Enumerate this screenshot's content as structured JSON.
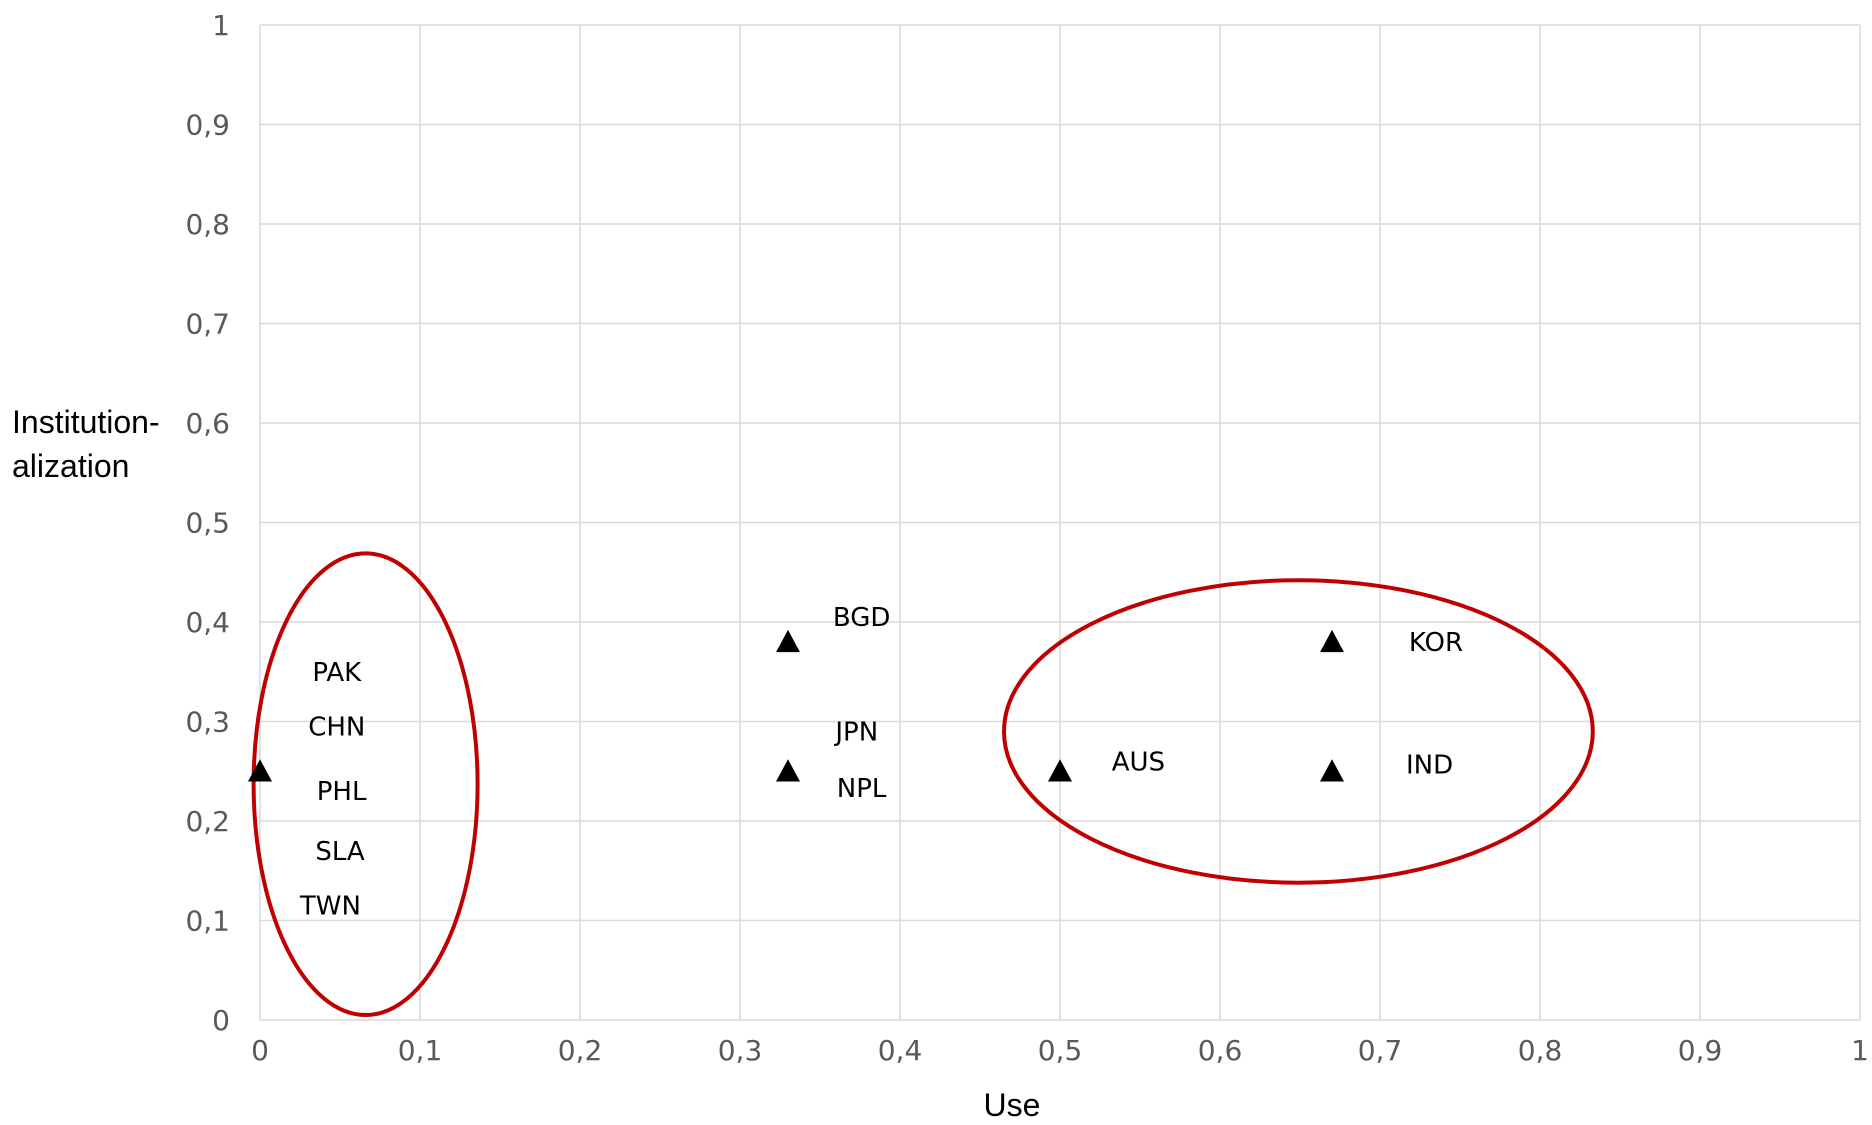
{
  "chart_data": {
    "type": "scatter",
    "xlabel": "Use",
    "ylabel_lines": [
      "Institution-",
      "alization"
    ],
    "xlim": [
      0,
      1
    ],
    "ylim": [
      0,
      1
    ],
    "x_ticks": [
      0,
      0.1,
      0.2,
      0.3,
      0.4,
      0.5,
      0.6,
      0.7,
      0.8,
      0.9,
      1
    ],
    "y_ticks": [
      0,
      0.1,
      0.2,
      0.3,
      0.4,
      0.5,
      0.6,
      0.7,
      0.8,
      0.9,
      1
    ],
    "x_tick_labels": [
      "0",
      "0,1",
      "0,2",
      "0,3",
      "0,4",
      "0,5",
      "0,6",
      "0,7",
      "0,8",
      "0,9",
      "1"
    ],
    "y_tick_labels": [
      "0",
      "0,1",
      "0,2",
      "0,3",
      "0,4",
      "0,5",
      "0,6",
      "0,7",
      "0,8",
      "0,9",
      "1"
    ],
    "grid": true,
    "marker": "triangle",
    "marker_color": "#000000",
    "grid_color": "#d9d9d9",
    "points": [
      {
        "x": 0,
        "y": 0.25
      },
      {
        "x": 0.33,
        "y": 0.38
      },
      {
        "x": 0.33,
        "y": 0.25
      },
      {
        "x": 0.5,
        "y": 0.25
      },
      {
        "x": 0.67,
        "y": 0.38
      },
      {
        "x": 0.67,
        "y": 0.25
      }
    ],
    "labels": [
      {
        "text": "PAK",
        "x": 0.048,
        "y": 0.35
      },
      {
        "text": "CHN",
        "x": 0.048,
        "y": 0.295
      },
      {
        "text": "PHL",
        "x": 0.051,
        "y": 0.23
      },
      {
        "text": "SLA",
        "x": 0.05,
        "y": 0.17
      },
      {
        "text": "TWN",
        "x": 0.044,
        "y": 0.115
      },
      {
        "text": "BGD",
        "x": 0.376,
        "y": 0.405
      },
      {
        "text": "JPN",
        "x": 0.373,
        "y": 0.29
      },
      {
        "text": "NPL",
        "x": 0.376,
        "y": 0.233
      },
      {
        "text": "AUS",
        "x": 0.549,
        "y": 0.26
      },
      {
        "text": "KOR",
        "x": 0.735,
        "y": 0.38
      },
      {
        "text": "IND",
        "x": 0.731,
        "y": 0.257
      }
    ],
    "clusters": [
      {
        "cx": 0.066,
        "cy": 0.237,
        "rx": 0.07,
        "ry": 0.232,
        "color": "#c00000"
      },
      {
        "cx": 0.649,
        "cy": 0.29,
        "rx": 0.184,
        "ry": 0.152,
        "color": "#c00000"
      }
    ]
  }
}
